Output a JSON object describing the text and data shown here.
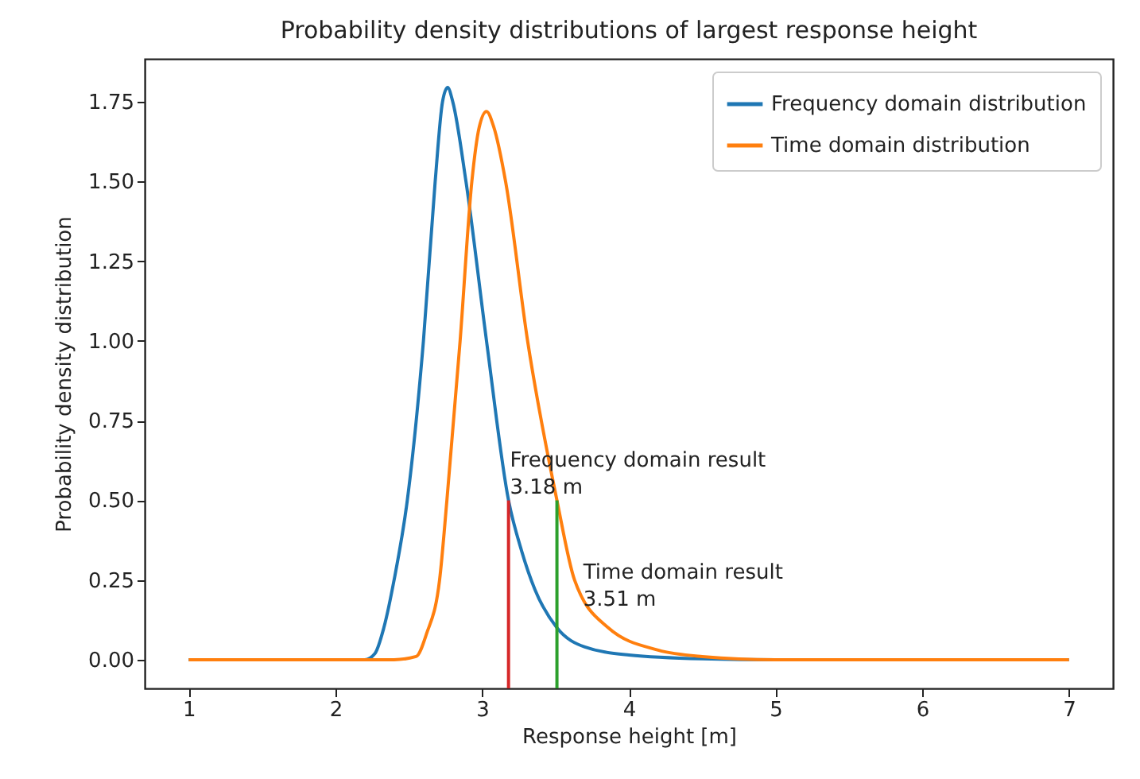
{
  "chart_data": {
    "type": "line",
    "title": "Probability density distributions of largest response height",
    "xlabel": "Response height [m]",
    "ylabel": "Probability density distribution",
    "xlim": [
      0.7,
      7.3
    ],
    "ylim": [
      -0.09,
      1.885
    ],
    "xticks": [
      1,
      2,
      3,
      4,
      5,
      6,
      7
    ],
    "yticks": [
      {
        "value": 0,
        "label": "0.00"
      },
      {
        "value": 0.25,
        "label": "0.25"
      },
      {
        "value": 0.5,
        "label": "0.50"
      },
      {
        "value": 0.75,
        "label": "0.75"
      },
      {
        "value": 1,
        "label": "1.00"
      },
      {
        "value": 1.25,
        "label": "1.25"
      },
      {
        "value": 1.5,
        "label": "1.50"
      },
      {
        "value": 1.75,
        "label": "1.75"
      }
    ],
    "grid": false,
    "legend": "top right",
    "marker": "none",
    "line_style": "solid",
    "series": [
      {
        "name": "Frequency domain distribution",
        "color": "#1f77b4",
        "x": [
          1,
          2.0,
          2.2,
          2.27,
          2.33,
          2.4,
          2.49,
          2.6,
          2.68,
          2.73,
          2.765,
          2.8,
          2.89,
          3.03,
          3.18,
          3.27,
          3.36,
          3.51,
          3.7,
          4.0,
          4.5,
          5,
          7
        ],
        "values": [
          0,
          0,
          0,
          0.02,
          0.1,
          0.25,
          0.5,
          1.0,
          1.5,
          1.75,
          1.795,
          1.75,
          1.5,
          1.0,
          0.5,
          0.34,
          0.22,
          0.1,
          0.04,
          0.015,
          0.003,
          0,
          0
        ]
      },
      {
        "name": "Time domain distribution",
        "color": "#ff7f0e",
        "x": [
          1,
          2.4,
          2.55,
          2.62,
          2.71,
          2.76,
          2.85,
          2.93,
          2.98,
          3.03,
          3.08,
          3.16,
          3.31,
          3.51,
          3.63,
          3.86,
          4.2,
          4.5,
          5,
          7
        ],
        "values": [
          0,
          0,
          0.01,
          0.08,
          0.25,
          0.5,
          1.0,
          1.5,
          1.67,
          1.72,
          1.67,
          1.5,
          1.0,
          0.5,
          0.25,
          0.1,
          0.03,
          0.01,
          0,
          0
        ]
      },
      {
        "color": "#d62728",
        "x": [
          3.18,
          3.18
        ],
        "values": [
          -0.09,
          0.5
        ]
      },
      {
        "color": "#2ca02c",
        "x": [
          3.51,
          3.51
        ],
        "values": [
          -0.09,
          0.5
        ]
      }
    ],
    "annotations": [
      {
        "text": "Frequency domain result\n3.18 m",
        "x": 3.19,
        "y": 0.59
      },
      {
        "text": "Time domain result\n3.51 m",
        "x": 3.69,
        "y": 0.24
      }
    ]
  }
}
